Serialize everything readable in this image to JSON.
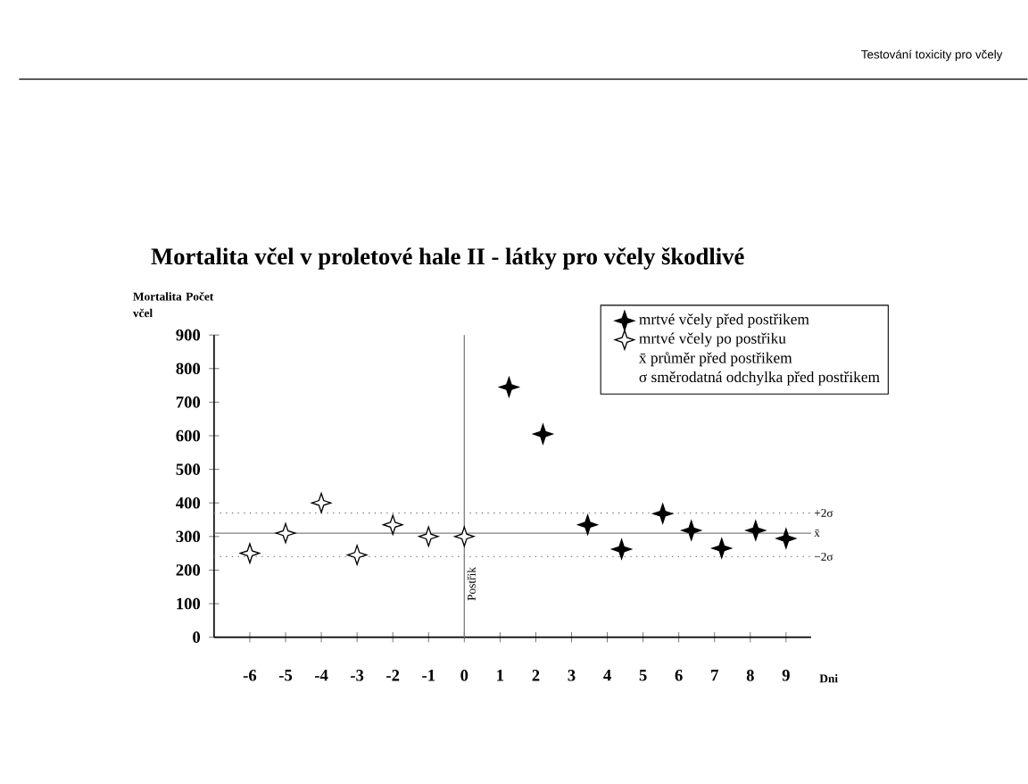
{
  "chart_data": {
    "type": "scatter",
    "title": "Mortalita včel v proletové hale II - látky pro včely škodlivé",
    "ylabel": "Mortalita Počet včel",
    "xlabel": "Dni",
    "series": [
      {
        "name": "mrtvé včely před postřikem",
        "color": "#000000",
        "x": [
          1.25,
          2.2,
          3.45,
          4.4,
          5.55,
          6.35,
          7.2,
          8.15,
          9.0
        ],
        "values": [
          745,
          605,
          335,
          262,
          368,
          318,
          265,
          318,
          294
        ]
      },
      {
        "name": "mrtvé včely po postřiku",
        "color": "#ffffff",
        "x": [
          -6,
          -5,
          -4,
          -3,
          -2,
          -1,
          0
        ],
        "values": [
          250,
          310,
          400,
          245,
          335,
          300,
          300
        ]
      }
    ],
    "annotations": [
      "Testování toxicity pro včely",
      "x̄ průměr před postřikem",
      "σ směrodatná odchylka před postřikem"
    ],
    "ref_lines": [
      {
        "axis": "y",
        "value": 370,
        "label": "+2σ",
        "color": "#808080",
        "line_style": "dotted"
      },
      {
        "axis": "y",
        "value": 310,
        "label": "x̄",
        "color": "#808080",
        "line_style": "solid"
      },
      {
        "axis": "y",
        "value": 240,
        "label": "−2σ",
        "color": "#808080",
        "line_style": "dotted"
      },
      {
        "axis": "x",
        "value": 0,
        "label": "Postřik",
        "color": "#808080",
        "line_style": "solid"
      }
    ],
    "xlim": [
      -7,
      9.7
    ],
    "xticks": [
      -6,
      -5,
      -4,
      -3,
      -2,
      -1,
      0,
      1,
      2,
      3,
      4,
      5,
      6,
      7,
      8,
      9
    ],
    "ylim": [
      0,
      900
    ],
    "yticks": [
      0,
      100,
      200,
      300,
      400,
      500,
      600,
      700,
      800,
      900
    ],
    "marker": "star",
    "legend": "top right",
    "grid": false
  }
}
